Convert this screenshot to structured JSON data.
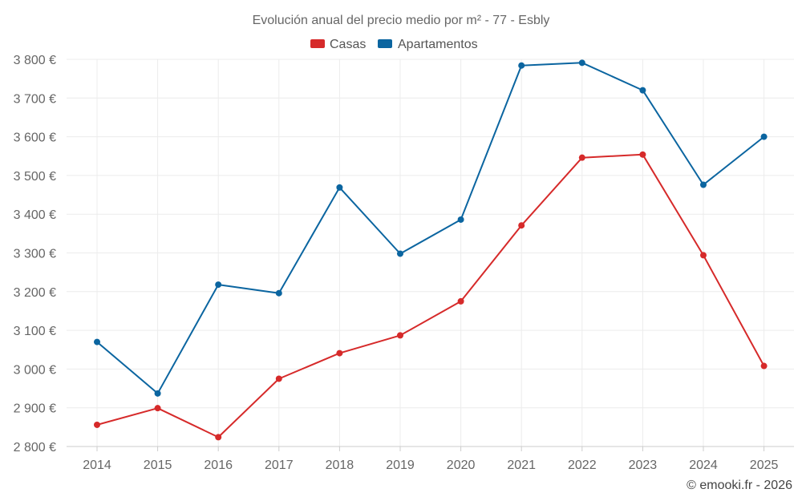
{
  "chart_data": {
    "type": "line",
    "title": "Evolución anual del precio medio por m² - 77 - Esbly",
    "xlabel": "",
    "ylabel": "",
    "categories": [
      "2014",
      "2015",
      "2016",
      "2017",
      "2018",
      "2019",
      "2020",
      "2021",
      "2022",
      "2023",
      "2024",
      "2025"
    ],
    "y_ticks": [
      "2 800 €",
      "2 900 €",
      "3 000 €",
      "3 100 €",
      "3 200 €",
      "3 300 €",
      "3 400 €",
      "3 500 €",
      "3 600 €",
      "3 700 €",
      "3 800 €"
    ],
    "ylim": [
      2800,
      3800
    ],
    "grid": true,
    "legend_position": "top-center",
    "series": [
      {
        "name": "Casas",
        "color": "#d62a2a",
        "values": [
          2856,
          2899,
          2824,
          2975,
          3041,
          3087,
          3175,
          3371,
          3546,
          3554,
          3294,
          3008
        ]
      },
      {
        "name": "Apartamentos",
        "color": "#0b65a0",
        "values": [
          3070,
          2937,
          3218,
          3196,
          3469,
          3298,
          3386,
          3784,
          3791,
          3720,
          3476,
          3600
        ]
      }
    ],
    "credit": "© emooki.fr - 2026"
  }
}
